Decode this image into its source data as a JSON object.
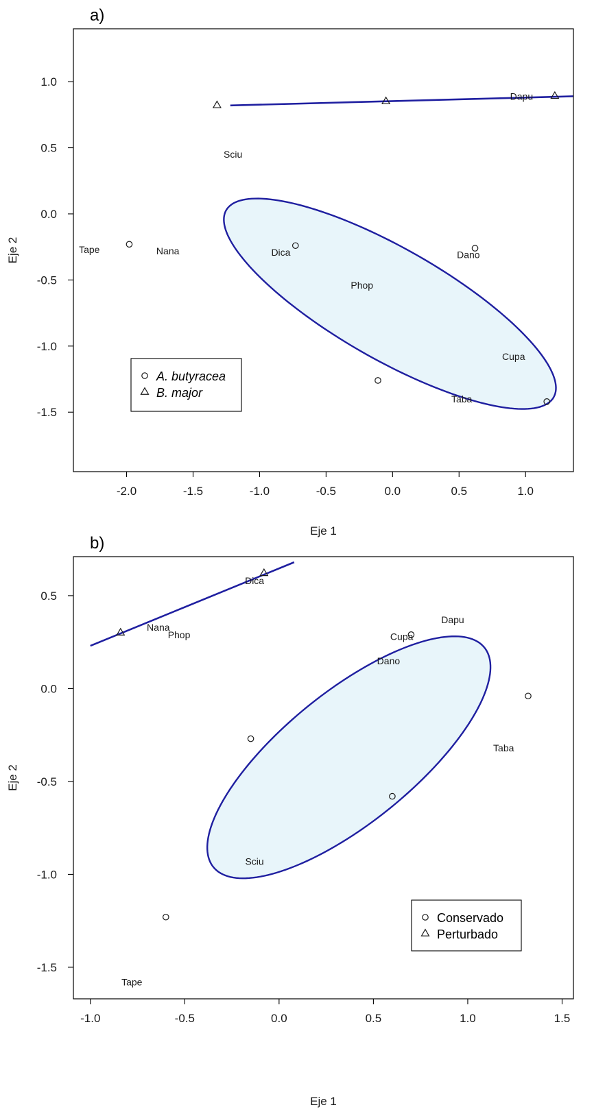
{
  "colors": {
    "line": "#1f1fa0",
    "ellipse_fill": "#e8f5fa",
    "ellipse_stroke": "#1f1fa0",
    "points": "#1a1a1a",
    "frame": "#000000"
  },
  "chart_data": [
    {
      "type": "scatter",
      "panel_label": "a)",
      "xlabel": "Eje 1",
      "ylabel": "Eje 2",
      "xlim": [
        -2.4,
        1.36
      ],
      "ylim": [
        -1.95,
        1.4
      ],
      "xticks": [
        -2.0,
        -1.5,
        -1.0,
        -0.5,
        0.0,
        0.5,
        1.0
      ],
      "xtick_labels": [
        "-2.0",
        "-1.5",
        "-1.0",
        "-0.5",
        "0.0",
        "0.5",
        "1.0"
      ],
      "yticks": [
        1.0,
        0.5,
        0.0,
        -0.5,
        -1.0,
        -1.5
      ],
      "ytick_labels": [
        "1.0",
        "0.5",
        "0.0",
        "-0.5",
        "-1.0",
        "-1.5"
      ],
      "legend": {
        "position": "bottom-left",
        "entries": [
          {
            "marker": "circle",
            "label": "A. butyracea",
            "italic": true
          },
          {
            "marker": "triangle",
            "label": "B. major",
            "italic": true
          }
        ]
      },
      "series": [
        {
          "name": "A. butyracea",
          "marker": "circle",
          "points": [
            [
              -1.98,
              -0.23
            ],
            [
              -0.73,
              -0.24
            ],
            [
              0.62,
              -0.26
            ],
            [
              -0.11,
              -1.26
            ],
            [
              1.16,
              -1.42
            ]
          ]
        },
        {
          "name": "B. major",
          "marker": "triangle",
          "points": [
            [
              -1.32,
              0.82
            ],
            [
              -0.05,
              0.85
            ],
            [
              1.22,
              0.89
            ]
          ]
        }
      ],
      "species_labels": [
        {
          "text": "Sciu",
          "x": -1.2,
          "y": 0.45
        },
        {
          "text": "Dapu",
          "x": 0.97,
          "y": 0.89
        },
        {
          "text": "Tape",
          "x": -2.28,
          "y": -0.27
        },
        {
          "text": "Nana",
          "x": -1.69,
          "y": -0.28
        },
        {
          "text": "Dica",
          "x": -0.84,
          "y": -0.29
        },
        {
          "text": "Dano",
          "x": 0.57,
          "y": -0.31
        },
        {
          "text": "Phop",
          "x": -0.23,
          "y": -0.54
        },
        {
          "text": "Cupa",
          "x": 0.91,
          "y": -1.08
        },
        {
          "text": "Taba",
          "x": 0.52,
          "y": -1.4
        }
      ],
      "line": [
        [
          -1.22,
          0.82
        ],
        [
          1.38,
          0.89
        ]
      ],
      "ellipse": {
        "cx": -0.02,
        "cy": -0.68,
        "rx": 1.42,
        "ry": 0.42,
        "angle_deg": -29.9
      }
    },
    {
      "type": "scatter",
      "panel_label": "b)",
      "xlabel": "Eje 1",
      "ylabel": "Eje 2",
      "xlim": [
        -1.09,
        1.56
      ],
      "ylim": [
        -1.67,
        0.71
      ],
      "xticks": [
        -1.0,
        -0.5,
        0.0,
        0.5,
        1.0,
        1.5
      ],
      "xtick_labels": [
        "-1.0",
        "-0.5",
        "0.0",
        "0.5",
        "1.0",
        "1.5"
      ],
      "yticks": [
        0.5,
        0.0,
        -0.5,
        -1.0,
        -1.5
      ],
      "ytick_labels": [
        "0.5",
        "0.0",
        "-0.5",
        "-1.0",
        "-1.5"
      ],
      "legend": {
        "position": "bottom-right",
        "entries": [
          {
            "marker": "circle",
            "label": "Conservado",
            "italic": false
          },
          {
            "marker": "triangle",
            "label": "Perturbado",
            "italic": false
          }
        ]
      },
      "series": [
        {
          "name": "Conservado",
          "marker": "circle",
          "points": [
            [
              -0.15,
              -0.27
            ],
            [
              0.6,
              -0.58
            ],
            [
              1.32,
              -0.04
            ],
            [
              -0.6,
              -1.23
            ],
            [
              0.7,
              0.29
            ]
          ]
        },
        {
          "name": "Perturbado",
          "marker": "triangle",
          "points": [
            [
              -0.84,
              0.3
            ],
            [
              -0.08,
              0.62
            ]
          ]
        }
      ],
      "species_labels": [
        {
          "text": "Dica",
          "x": -0.13,
          "y": 0.58
        },
        {
          "text": "Nana",
          "x": -0.64,
          "y": 0.33
        },
        {
          "text": "Phop",
          "x": -0.53,
          "y": 0.29
        },
        {
          "text": "Dapu",
          "x": 0.92,
          "y": 0.37
        },
        {
          "text": "Cupa",
          "x": 0.65,
          "y": 0.28
        },
        {
          "text": "Dano",
          "x": 0.58,
          "y": 0.15
        },
        {
          "text": "Taba",
          "x": 1.19,
          "y": -0.32
        },
        {
          "text": "Sciu",
          "x": -0.13,
          "y": -0.93
        },
        {
          "text": "Tape",
          "x": -0.78,
          "y": -1.58
        }
      ],
      "line": [
        [
          -1.0,
          0.23
        ],
        [
          0.08,
          0.68
        ]
      ],
      "ellipse": {
        "cx": 0.37,
        "cy": -0.37,
        "rx": 0.93,
        "ry": 0.35,
        "angle_deg": 39.6
      }
    }
  ]
}
